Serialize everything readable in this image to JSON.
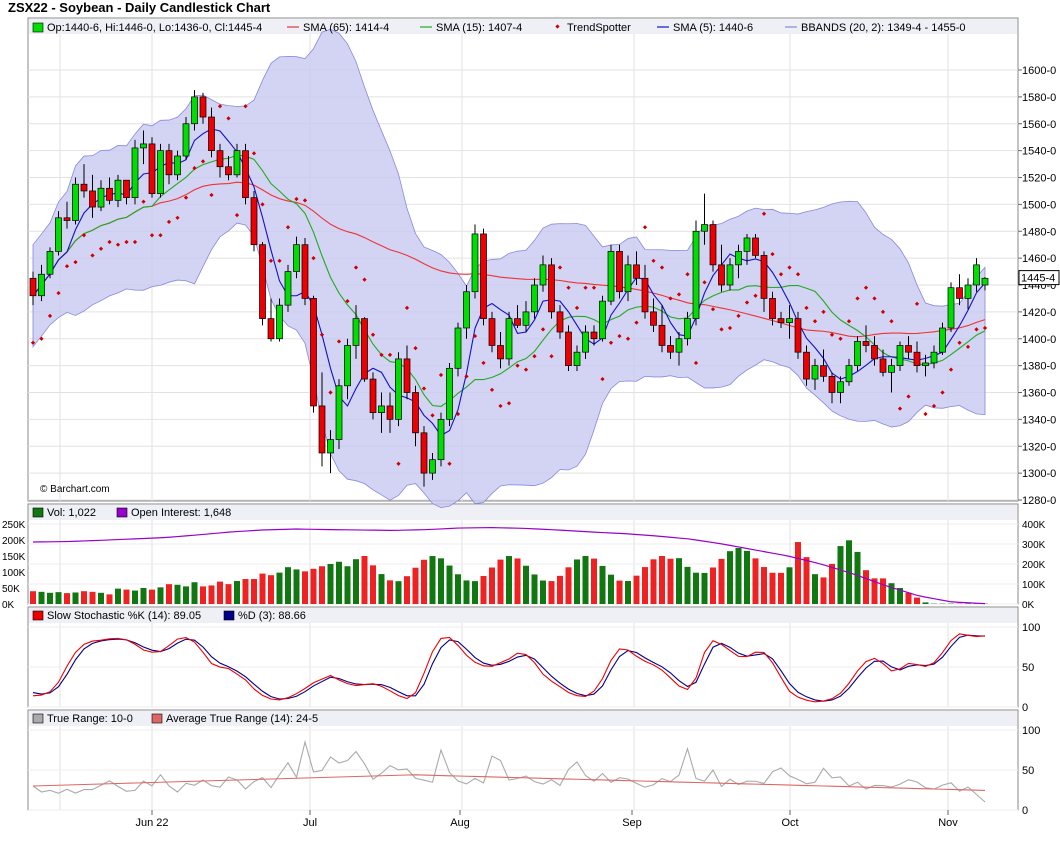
{
  "title": "ZSX22 - Soybean - Daily Candlestick Chart",
  "watermark": "© Barchart.com",
  "colors": {
    "up": "#00dd00",
    "down": "#ee0000",
    "sma65": "#ee3333",
    "sma15": "#22aa22",
    "sma5": "#1111cc",
    "trend": "#cc0000",
    "band": "#c8c8f0",
    "volUp": "#117711",
    "volDown": "#ee2222",
    "oi": "#9900cc",
    "stochK": "#ee0000",
    "stochD": "#000088",
    "tr": "#aaaaaa",
    "atr": "#dd6666"
  },
  "price_panel": {
    "legend": [
      {
        "swatch": "candle",
        "text": "Op:1440-6, Hi:1446-0, Lo:1436-0, Cl:1445-4"
      },
      {
        "swatch": "line-red",
        "text": "SMA (65): 1414-4"
      },
      {
        "swatch": "line-green",
        "text": "SMA (15): 1407-4"
      },
      {
        "swatch": "dot",
        "text": "TrendSpotter"
      },
      {
        "swatch": "line-blue",
        "text": "SMA (5): 1440-6"
      },
      {
        "swatch": "band",
        "text": "BBANDS (20, 2): 1349-4 - 1455-0"
      }
    ],
    "y_ticks": [
      "1600-0",
      "1580-0",
      "1560-0",
      "1540-0",
      "1520-0",
      "1500-0",
      "1480-0",
      "1460-0",
      "1440-0",
      "1420-0",
      "1400-0",
      "1380-0",
      "1360-0",
      "1340-0",
      "1320-0",
      "1300-0",
      "1280-0"
    ],
    "last_label": "1445-4"
  },
  "volume_panel": {
    "legend": [
      {
        "swatch": "vol",
        "text": "Vol: 1,022"
      },
      {
        "swatch": "oi",
        "text": "Open Interest: 1,648"
      }
    ],
    "y_left": [
      "250K",
      "200K",
      "150K",
      "100K",
      "50K",
      "0K"
    ],
    "y_right": [
      "400K",
      "300K",
      "200K",
      "100K",
      "0K"
    ]
  },
  "stoch_panel": {
    "legend": [
      {
        "swatch": "k",
        "text": "Slow Stochastic %K (14): 89.05"
      },
      {
        "swatch": "d",
        "text": "%D (3): 88.66"
      }
    ],
    "y_ticks": [
      "100",
      "50",
      "0"
    ]
  },
  "atr_panel": {
    "legend": [
      {
        "swatch": "tr",
        "text": "True Range: 10-0"
      },
      {
        "swatch": "atr",
        "text": "Average True Range (14): 24-5"
      }
    ],
    "y_ticks": [
      "100",
      "50",
      "0"
    ]
  },
  "x_labels": [
    "Jun 22",
    "Jul",
    "Aug",
    "Sep",
    "Oct",
    "Nov"
  ],
  "chart_data": {
    "type": "candlestick",
    "title": "ZSX22 - Soybean - Daily Candlestick Chart",
    "x_range": [
      "2022-06-01",
      "2022-11-08"
    ],
    "ylim": [
      1280,
      1610
    ],
    "candles": [
      [
        1445,
        1450,
        1425,
        1432
      ],
      [
        1432,
        1455,
        1428,
        1448
      ],
      [
        1448,
        1468,
        1445,
        1465
      ],
      [
        1465,
        1495,
        1462,
        1490
      ],
      [
        1490,
        1502,
        1482,
        1488
      ],
      [
        1488,
        1520,
        1485,
        1515
      ],
      [
        1515,
        1530,
        1505,
        1510
      ],
      [
        1510,
        1522,
        1490,
        1498
      ],
      [
        1498,
        1518,
        1495,
        1512
      ],
      [
        1512,
        1520,
        1500,
        1503
      ],
      [
        1503,
        1522,
        1498,
        1518
      ],
      [
        1518,
        1518,
        1500,
        1505
      ],
      [
        1505,
        1548,
        1500,
        1542
      ],
      [
        1542,
        1555,
        1530,
        1545
      ],
      [
        1545,
        1550,
        1505,
        1508
      ],
      [
        1508,
        1545,
        1505,
        1540
      ],
      [
        1540,
        1545,
        1515,
        1522
      ],
      [
        1522,
        1540,
        1518,
        1536
      ],
      [
        1536,
        1565,
        1533,
        1560
      ],
      [
        1560,
        1585,
        1555,
        1580
      ],
      [
        1580,
        1583,
        1560,
        1565
      ],
      [
        1565,
        1572,
        1535,
        1540
      ],
      [
        1540,
        1545,
        1520,
        1528
      ],
      [
        1528,
        1536,
        1518,
        1522
      ],
      [
        1522,
        1545,
        1520,
        1540
      ],
      [
        1540,
        1545,
        1500,
        1505
      ],
      [
        1505,
        1510,
        1465,
        1470
      ],
      [
        1470,
        1472,
        1410,
        1415
      ],
      [
        1415,
        1430,
        1398,
        1400
      ],
      [
        1400,
        1430,
        1398,
        1425
      ],
      [
        1425,
        1455,
        1420,
        1450
      ],
      [
        1450,
        1476,
        1445,
        1470
      ],
      [
        1470,
        1475,
        1425,
        1430
      ],
      [
        1430,
        1432,
        1345,
        1350
      ],
      [
        1350,
        1375,
        1305,
        1315
      ],
      [
        1315,
        1332,
        1300,
        1325
      ],
      [
        1325,
        1370,
        1318,
        1365
      ],
      [
        1365,
        1400,
        1355,
        1395
      ],
      [
        1395,
        1425,
        1385,
        1415
      ],
      [
        1415,
        1416,
        1368,
        1370
      ],
      [
        1370,
        1375,
        1340,
        1345
      ],
      [
        1345,
        1360,
        1330,
        1350
      ],
      [
        1350,
        1360,
        1330,
        1340
      ],
      [
        1340,
        1390,
        1335,
        1385
      ],
      [
        1385,
        1395,
        1355,
        1360
      ],
      [
        1360,
        1365,
        1320,
        1330
      ],
      [
        1330,
        1335,
        1290,
        1300
      ],
      [
        1300,
        1315,
        1295,
        1310
      ],
      [
        1310,
        1345,
        1305,
        1340
      ],
      [
        1340,
        1382,
        1335,
        1378
      ],
      [
        1378,
        1412,
        1372,
        1408
      ],
      [
        1408,
        1440,
        1400,
        1435
      ],
      [
        1435,
        1485,
        1430,
        1478
      ],
      [
        1478,
        1482,
        1410,
        1415
      ],
      [
        1415,
        1420,
        1390,
        1395
      ],
      [
        1395,
        1405,
        1378,
        1385
      ],
      [
        1385,
        1420,
        1380,
        1415
      ],
      [
        1415,
        1425,
        1408,
        1410
      ],
      [
        1410,
        1428,
        1405,
        1420
      ],
      [
        1420,
        1445,
        1415,
        1440
      ],
      [
        1440,
        1462,
        1435,
        1455
      ],
      [
        1455,
        1460,
        1415,
        1420
      ],
      [
        1420,
        1425,
        1400,
        1405
      ],
      [
        1405,
        1410,
        1376,
        1380
      ],
      [
        1380,
        1395,
        1376,
        1390
      ],
      [
        1390,
        1410,
        1385,
        1405
      ],
      [
        1405,
        1410,
        1395,
        1400
      ],
      [
        1400,
        1432,
        1398,
        1428
      ],
      [
        1428,
        1470,
        1425,
        1465
      ],
      [
        1465,
        1470,
        1430,
        1435
      ],
      [
        1435,
        1462,
        1428,
        1455
      ],
      [
        1455,
        1465,
        1440,
        1445
      ],
      [
        1445,
        1455,
        1415,
        1420
      ],
      [
        1420,
        1430,
        1405,
        1410
      ],
      [
        1410,
        1425,
        1390,
        1395
      ],
      [
        1395,
        1402,
        1385,
        1390
      ],
      [
        1390,
        1405,
        1380,
        1400
      ],
      [
        1400,
        1420,
        1395,
        1415
      ],
      [
        1415,
        1488,
        1410,
        1480
      ],
      [
        1480,
        1508,
        1470,
        1485
      ],
      [
        1485,
        1488,
        1450,
        1455
      ],
      [
        1455,
        1470,
        1435,
        1440
      ],
      [
        1440,
        1460,
        1436,
        1455
      ],
      [
        1455,
        1470,
        1445,
        1465
      ],
      [
        1465,
        1478,
        1455,
        1475
      ],
      [
        1475,
        1478,
        1460,
        1462
      ],
      [
        1462,
        1465,
        1420,
        1430
      ],
      [
        1430,
        1435,
        1410,
        1415
      ],
      [
        1415,
        1420,
        1408,
        1412
      ],
      [
        1412,
        1425,
        1400,
        1415
      ],
      [
        1415,
        1420,
        1385,
        1390
      ],
      [
        1390,
        1395,
        1365,
        1370
      ],
      [
        1370,
        1385,
        1362,
        1380
      ],
      [
        1380,
        1392,
        1368,
        1372
      ],
      [
        1372,
        1375,
        1352,
        1360
      ],
      [
        1360,
        1372,
        1352,
        1368
      ],
      [
        1368,
        1385,
        1365,
        1380
      ],
      [
        1380,
        1402,
        1376,
        1398
      ],
      [
        1398,
        1410,
        1390,
        1395
      ],
      [
        1395,
        1402,
        1380,
        1385
      ],
      [
        1385,
        1392,
        1372,
        1375
      ],
      [
        1375,
        1385,
        1360,
        1380
      ],
      [
        1380,
        1398,
        1376,
        1395
      ],
      [
        1395,
        1402,
        1385,
        1390
      ],
      [
        1390,
        1398,
        1375,
        1380
      ],
      [
        1380,
        1388,
        1372,
        1382
      ],
      [
        1382,
        1395,
        1378,
        1390
      ],
      [
        1390,
        1412,
        1388,
        1408
      ],
      [
        1408,
        1442,
        1405,
        1438
      ],
      [
        1438,
        1448,
        1425,
        1430
      ],
      [
        1430,
        1445,
        1422,
        1440
      ],
      [
        1440,
        1460,
        1435,
        1455
      ],
      [
        1440,
        1446,
        1436,
        1445
      ]
    ],
    "volume": [
      40000,
      38000,
      35000,
      37000,
      34000,
      36000,
      40000,
      38000,
      35000,
      30000,
      48000,
      45000,
      42000,
      50000,
      45000,
      52000,
      62000,
      60000,
      55000,
      68000,
      55000,
      58000,
      70000,
      62000,
      72000,
      78000,
      78000,
      95000,
      90000,
      98000,
      115000,
      108000,
      102000,
      110000,
      118000,
      125000,
      132000,
      118000,
      140000,
      150000
    ],
    "open_interest": [
      310000,
      312000,
      318000,
      325000,
      332000,
      345000,
      360000,
      370000,
      375000,
      372000,
      370000,
      368000,
      372000,
      380000,
      382000,
      378000,
      370000,
      360000,
      352000,
      340000,
      325000,
      300000,
      270000,
      240000,
      200000,
      150000,
      90000,
      40000,
      10000,
      2000
    ],
    "series": [
      {
        "name": "SMA (65)",
        "last": "1414-4"
      },
      {
        "name": "SMA (15)",
        "last": "1407-4"
      },
      {
        "name": "SMA (5)",
        "last": "1440-6"
      },
      {
        "name": "BBANDS (20, 2)",
        "lower": "1349-4",
        "upper": "1455-0"
      }
    ],
    "stochastic": {
      "k": [
        14,
        15,
        20,
        35,
        60,
        75,
        82,
        83,
        85,
        86,
        84,
        78,
        70,
        68,
        70,
        82,
        88,
        85,
        72,
        55,
        50,
        48,
        40,
        32,
        18,
        12,
        8,
        10,
        15,
        22,
        30,
        35,
        40,
        32,
        28,
        26,
        30,
        28,
        22,
        15,
        10,
        18,
        45,
        75,
        90,
        85,
        70,
        58,
        52,
        50,
        55,
        60,
        68,
        65,
        52,
        35,
        30,
        20,
        15,
        12,
        18,
        35,
        60,
        75,
        70,
        60,
        55,
        50,
        40,
        28,
        20,
        35,
        70,
        85,
        76,
        68,
        60,
        66,
        72,
        60,
        40,
        20,
        12,
        8,
        6,
        8,
        12,
        22,
        40,
        55,
        62,
        55,
        45,
        48,
        56,
        52,
        50,
        60,
        78,
        92,
        90,
        88,
        89
      ],
      "d": [
        18,
        16,
        18,
        28,
        48,
        68,
        78,
        82,
        84,
        85,
        84,
        80,
        74,
        70,
        69,
        76,
        84,
        86,
        78,
        64,
        55,
        50,
        44,
        36,
        25,
        16,
        10,
        10,
        12,
        18,
        26,
        32,
        38,
        35,
        30,
        28,
        28,
        29,
        26,
        20,
        14,
        14,
        30,
        60,
        80,
        86,
        78,
        65,
        56,
        52,
        53,
        57,
        63,
        65,
        58,
        44,
        34,
        25,
        18,
        14,
        15,
        26,
        48,
        66,
        72,
        66,
        58,
        53,
        46,
        35,
        25,
        30,
        55,
        78,
        80,
        72,
        64,
        63,
        68,
        64,
        48,
        30,
        18,
        12,
        8,
        7,
        10,
        17,
        32,
        46,
        57,
        58,
        50,
        46,
        52,
        53,
        51,
        56,
        70,
        86,
        90,
        89,
        88.66
      ],
      "k_last": 89.05,
      "d_last": 88.66
    },
    "true_range": [
      30,
      22,
      25,
      20,
      28,
      18,
      30,
      22,
      40,
      32,
      25,
      20,
      38,
      28,
      45,
      30,
      22,
      35,
      30,
      40,
      26,
      30,
      50,
      25,
      28,
      48,
      24,
      40,
      62,
      38,
      85,
      45,
      50,
      70,
      55,
      65,
      78,
      42,
      35,
      60,
      48,
      55,
      40,
      38,
      32,
      75,
      45,
      35,
      32,
      42,
      30,
      90,
      40,
      35,
      45,
      38,
      30,
      40,
      28,
      50,
      60,
      42,
      35,
      48,
      30,
      45,
      35,
      32,
      25,
      40,
      38,
      30,
      85,
      40,
      35,
      50,
      28,
      40,
      30,
      38,
      35,
      32,
      60,
      45,
      40,
      35,
      28,
      55,
      40,
      42,
      30,
      35,
      25,
      32,
      30,
      28,
      35,
      40,
      30,
      25,
      28,
      38,
      22,
      30,
      20,
      10
    ],
    "atr_start": 30,
    "atr_mid": 44,
    "atr_last": "24-5"
  }
}
